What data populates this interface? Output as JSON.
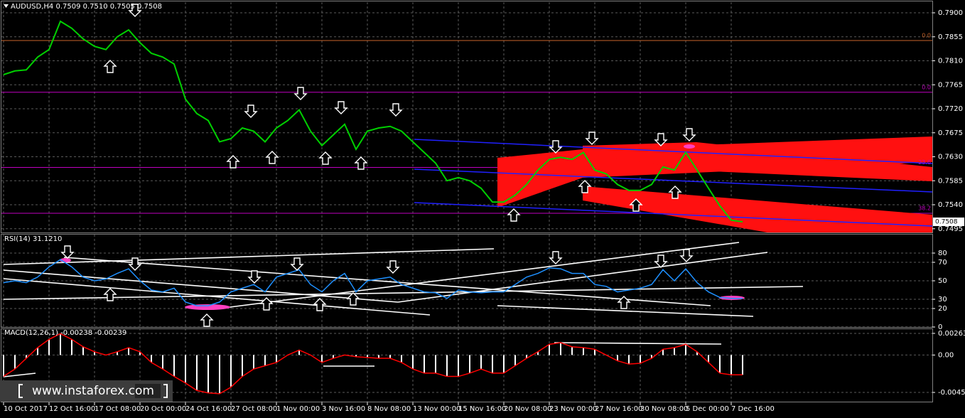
{
  "chart_data": [
    {
      "type": "line",
      "title": "AUDUSD,H4  0.7509 0.7510 0.7505 0.7508",
      "categories": [
        "10 Oct 2017",
        null,
        null,
        null,
        "12 Oct 16:00",
        null,
        null,
        null,
        "17 Oct 08:00",
        null,
        null,
        null,
        "20 Oct 00:00",
        null,
        null,
        null,
        "24 Oct 16:00",
        null,
        null,
        null,
        "27 Oct 08:00",
        null,
        null,
        null,
        "1 Nov 00:00",
        null,
        null,
        null,
        "3 Nov 16:00",
        null,
        null,
        null,
        "8 Nov 08:00",
        null,
        null,
        null,
        "13 Nov 00:00",
        null,
        null,
        null,
        "15 Nov 16:00",
        null,
        null,
        null,
        "20 Nov 08:00",
        null,
        null,
        null,
        "23 Nov 00:00",
        null,
        null,
        null,
        "27 Nov 16:00",
        null,
        null,
        null,
        "30 Nov 08:00",
        null,
        null,
        null,
        "5 Dec 00:00",
        null,
        null,
        null,
        "7 Dec 16:00",
        null
      ],
      "series": [
        {
          "color": "#00d000",
          "values": [
            0.7784,
            0.7791,
            0.7793,
            0.7817,
            0.7831,
            0.7884,
            0.7871,
            0.7851,
            0.7837,
            0.7831,
            0.7855,
            0.7868,
            0.7844,
            0.7824,
            0.7817,
            0.7804,
            0.7738,
            0.7711,
            0.7698,
            0.7658,
            0.7664,
            0.7684,
            0.7678,
            0.7658,
            0.7684,
            0.7698,
            0.7718,
            0.7678,
            0.7651,
            0.7671,
            0.7691,
            0.7644,
            0.7678,
            0.7684,
            0.7687,
            0.7678,
            0.7658,
            0.7638,
            0.7618,
            0.7585,
            0.7591,
            0.7585,
            0.7571,
            0.7545,
            0.7545,
            0.7558,
            0.7578,
            0.7605,
            0.7625,
            0.7629,
            0.7625,
            0.7638,
            0.7605,
            0.7598,
            0.7578,
            0.7567,
            0.7567,
            0.7578,
            0.7611,
            0.7605,
            0.7638,
            0.7605,
            0.7571,
            0.7538,
            0.7511,
            0.7508
          ]
        }
      ],
      "ylim": [
        0.7488,
        0.792
      ],
      "yticks": [
        {
          "value": 0.79,
          "label": "0.7900"
        },
        0.7855,
        {
          "value": 0.781,
          "label": "0.7810"
        },
        0.7765,
        {
          "value": 0.772,
          "label": "0.7720"
        },
        0.7675,
        {
          "value": 0.763,
          "label": "0.7630"
        },
        0.7585,
        {
          "value": 0.754,
          "label": "0.7540"
        },
        0.7495
      ],
      "levels": [
        {
          "value": 0.7848,
          "label": "0.0",
          "color": "#c8642a"
        },
        {
          "value": 0.7751,
          "label": "0.0",
          "color": "#c000c0"
        },
        {
          "value": 0.761,
          "label": "23.6",
          "color": "#c000c0"
        },
        {
          "value": 0.7524,
          "label": "38.2",
          "color": "#c000c0"
        }
      ],
      "current_price": 0.7508,
      "grid": true
    },
    {
      "type": "line",
      "title": "RSI(14) 31.1210",
      "series": [
        {
          "color": "#1e90ff",
          "values": [
            48,
            50,
            48,
            54,
            65,
            73,
            65,
            54,
            50,
            52,
            58,
            63,
            50,
            40,
            38,
            42,
            27,
            23,
            23,
            27,
            38,
            42,
            46,
            38,
            54,
            58,
            62,
            46,
            38,
            50,
            58,
            38,
            50,
            52,
            54,
            46,
            42,
            38,
            37,
            31,
            40,
            38,
            37,
            38,
            38,
            46,
            54,
            58,
            64,
            63,
            58,
            58,
            46,
            44,
            38,
            40,
            42,
            46,
            62,
            50,
            63,
            48,
            38,
            32,
            31,
            31
          ]
        }
      ],
      "ylim": [
        0,
        100
      ],
      "yticks": [
        0,
        20,
        30,
        50,
        70,
        80
      ],
      "grid": true
    },
    {
      "type": "bar",
      "title": "MACD(12,26,1) -0.00238 -0.00239",
      "series": [
        {
          "type": "bar",
          "color": "#ffffff",
          "values": [
            -0.0026,
            -0.0017,
            -0.0004,
            0.0009,
            0.0019,
            0.0026,
            0.0019,
            0.001,
            0.0004,
            0,
            0.0004,
            0.0009,
            0.0004,
            -0.0009,
            -0.0017,
            -0.0026,
            -0.0034,
            -0.0043,
            -0.0046,
            -0.0047,
            -0.0039,
            -0.0026,
            -0.0017,
            -0.0013,
            -0.0009,
            0,
            0.0006,
            0,
            -0.0009,
            -0.0004,
            0,
            -0.0002,
            -0.0003,
            -0.0004,
            -0.0004,
            -0.0009,
            -0.0017,
            -0.0022,
            -0.0022,
            -0.0026,
            -0.0026,
            -0.0022,
            -0.0017,
            -0.0022,
            -0.0022,
            -0.0013,
            -0.0004,
            0.0004,
            0.0013,
            0.0015,
            0.001,
            0.0009,
            0.0007,
            0,
            -0.0007,
            -0.0011,
            -0.001,
            -0.0004,
            0.0007,
            0.0009,
            0.0013,
            0.0004,
            -0.0009,
            -0.0022,
            -0.0024,
            -0.0024
          ]
        },
        {
          "type": "line",
          "color": "#ff0000",
          "values": [
            -0.0026,
            -0.0017,
            -0.0004,
            0.0009,
            0.0019,
            0.0026,
            0.0019,
            0.001,
            0.0004,
            0,
            0.0004,
            0.0009,
            0.0004,
            -0.0009,
            -0.0017,
            -0.0026,
            -0.0034,
            -0.0043,
            -0.0046,
            -0.0047,
            -0.0039,
            -0.0026,
            -0.0017,
            -0.0013,
            -0.0009,
            0,
            0.0006,
            0,
            -0.0009,
            -0.0004,
            0,
            -0.0002,
            -0.0003,
            -0.0004,
            -0.0004,
            -0.0009,
            -0.0017,
            -0.0022,
            -0.0022,
            -0.0026,
            -0.0026,
            -0.0022,
            -0.0017,
            -0.0022,
            -0.0022,
            -0.0013,
            -0.0004,
            0.0004,
            0.0013,
            0.0015,
            0.001,
            0.0009,
            0.0007,
            0,
            -0.0007,
            -0.0011,
            -0.001,
            -0.0004,
            0.0007,
            0.0009,
            0.0013,
            0.0004,
            -0.0009,
            -0.0022,
            -0.0024,
            -0.0024
          ]
        }
      ],
      "ylim": [
        -0.00566,
        0.00323
      ],
      "yticks": [
        0.00263,
        {
          "value": 0,
          "label": "0.00"
        },
        -0.00454
      ],
      "grid": true
    }
  ],
  "watermark": "www.instaforex.com"
}
